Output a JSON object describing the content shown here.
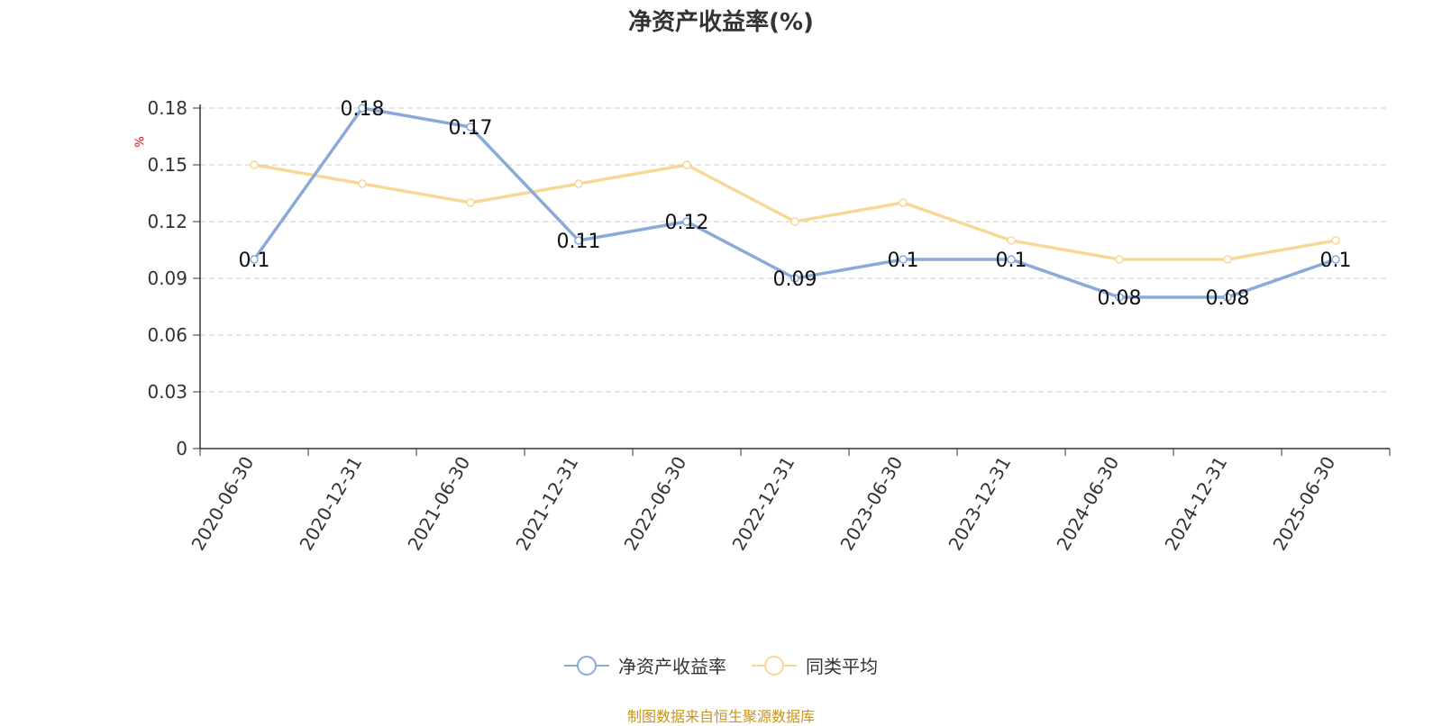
{
  "chart_data": {
    "type": "line",
    "title": "净资产收益率(%)",
    "ylabel": "%",
    "xlabel": "",
    "categories": [
      "2020-06-30",
      "2020-12-31",
      "2021-06-30",
      "2021-12-31",
      "2022-06-30",
      "2022-12-31",
      "2023-06-30",
      "2023-12-31",
      "2024-06-30",
      "2024-12-31",
      "2025-06-30"
    ],
    "ylim": [
      0,
      0.18
    ],
    "yticks": [
      "0",
      "0.03",
      "0.06",
      "0.09",
      "0.12",
      "0.15",
      "0.18"
    ],
    "grid": true,
    "legend_position": "bottom",
    "series": [
      {
        "name": "净资产收益率",
        "color": "#8aaad8",
        "values": [
          0.1,
          0.18,
          0.17,
          0.11,
          0.12,
          0.09,
          0.1,
          0.1,
          0.08,
          0.08,
          0.1
        ],
        "labels": [
          "0.1",
          "0.18",
          "0.17",
          "0.11",
          "0.12",
          "0.09",
          "0.1",
          "0.1",
          "0.08",
          "0.08",
          "0.1"
        ]
      },
      {
        "name": "同类平均",
        "color": "#f8d898",
        "values": [
          0.15,
          0.14,
          0.13,
          0.14,
          0.15,
          0.12,
          0.13,
          0.11,
          0.1,
          0.1,
          0.11
        ]
      }
    ]
  },
  "source": "制图数据来自恒生聚源数据库"
}
